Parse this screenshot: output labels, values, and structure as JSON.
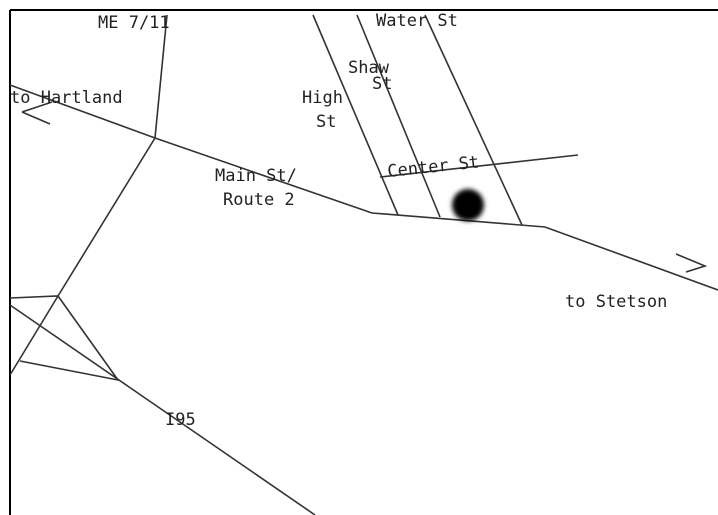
{
  "map": {
    "labels": {
      "me711": "ME 7/11",
      "water": "Water St",
      "shaw": [
        "Shaw",
        "St"
      ],
      "high": [
        "High",
        "St"
      ],
      "hartland": "to Hartland",
      "center": "Center St",
      "main": [
        "Main St/",
        "Route 2"
      ],
      "stetson": "to Stetson",
      "i95": "I95"
    }
  }
}
